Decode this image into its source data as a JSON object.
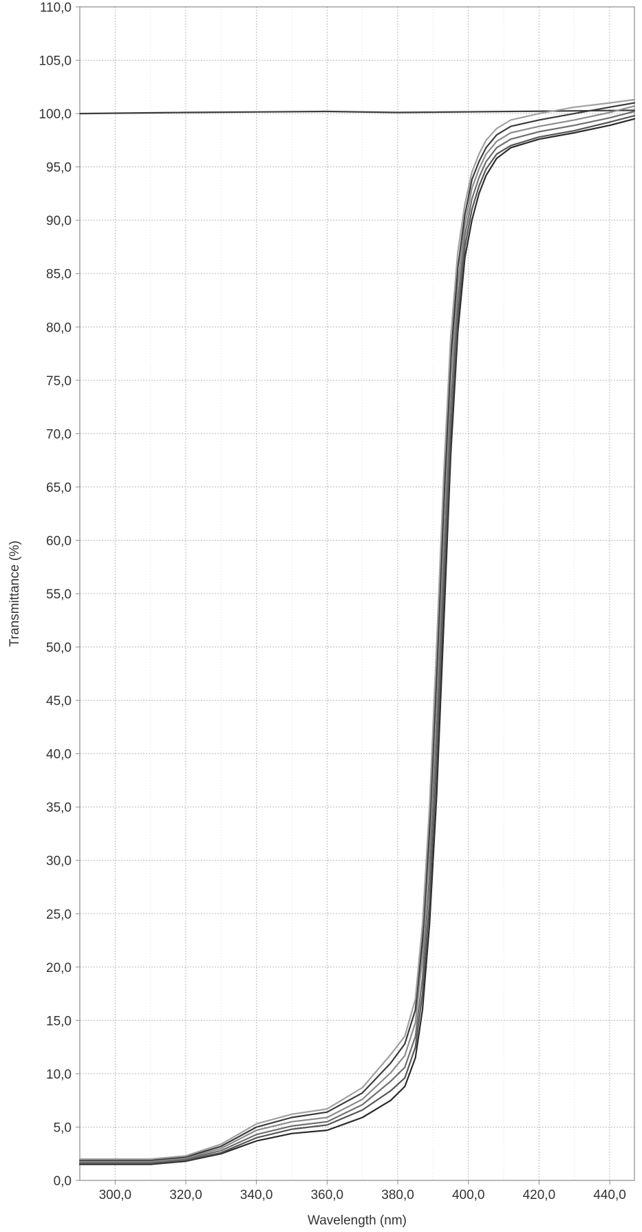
{
  "chart_data": {
    "type": "line",
    "xlabel": "Wavelength (nm)",
    "ylabel": "Transmittance (%)",
    "xlim": [
      290,
      447
    ],
    "ylim": [
      0,
      110
    ],
    "x_ticks": [
      300,
      320,
      340,
      360,
      380,
      400,
      420,
      440
    ],
    "x_tick_labels": [
      "300,0",
      "320,0",
      "340,0",
      "360,0",
      "380,0",
      "400,0",
      "420,0",
      "440,0"
    ],
    "y_ticks": [
      0,
      5,
      10,
      15,
      20,
      25,
      30,
      35,
      40,
      45,
      50,
      55,
      60,
      65,
      70,
      75,
      80,
      85,
      90,
      95,
      100,
      105,
      110
    ],
    "y_tick_labels": [
      "0,0",
      "5,0",
      "10,0",
      "15,0",
      "20,0",
      "25,0",
      "30,0",
      "35,0",
      "40,0",
      "45,0",
      "50,0",
      "55,0",
      "60,0",
      "65,0",
      "70,0",
      "75,0",
      "80,0",
      "85,0",
      "90,0",
      "95,0",
      "100,0",
      "105,0",
      "110,0"
    ],
    "grid": true,
    "legend": "none",
    "series": [
      {
        "color": "#3c3c3c",
        "x": [
          290,
          320,
          360,
          380,
          447
        ],
        "y": [
          100.0,
          100.1,
          100.2,
          100.1,
          100.3
        ]
      },
      {
        "color": "#2a2a2a",
        "x": [
          290,
          300,
          310,
          320,
          330,
          340,
          350,
          360,
          370,
          378,
          382,
          385,
          387,
          389,
          391,
          393,
          395,
          397,
          399,
          401,
          403,
          405,
          408,
          412,
          420,
          430,
          440,
          447
        ],
        "y": [
          1.5,
          1.5,
          1.5,
          1.8,
          2.5,
          3.7,
          4.4,
          4.7,
          5.9,
          7.5,
          8.8,
          11.5,
          16.0,
          24.0,
          36.0,
          52.0,
          68.0,
          79.5,
          86.5,
          90.0,
          92.5,
          94.2,
          95.8,
          96.8,
          97.6,
          98.2,
          98.9,
          99.5
        ]
      },
      {
        "color": "#555555",
        "x": [
          290,
          300,
          310,
          320,
          330,
          340,
          350,
          360,
          370,
          378,
          382,
          385,
          387,
          389,
          391,
          393,
          395,
          397,
          399,
          401,
          403,
          405,
          408,
          412,
          420,
          430,
          440,
          447
        ],
        "y": [
          1.6,
          1.6,
          1.6,
          1.9,
          2.6,
          4.0,
          4.8,
          5.2,
          6.6,
          8.4,
          9.6,
          12.5,
          17.5,
          26.0,
          39.0,
          55.0,
          70.0,
          81.0,
          87.5,
          91.0,
          93.2,
          94.8,
          96.2,
          97.0,
          97.8,
          98.4,
          99.2,
          99.8
        ]
      },
      {
        "color": "#6e6e6e",
        "x": [
          290,
          300,
          310,
          320,
          330,
          340,
          350,
          360,
          370,
          378,
          382,
          385,
          387,
          389,
          391,
          393,
          395,
          397,
          399,
          401,
          403,
          405,
          408,
          412,
          420,
          430,
          440,
          447
        ],
        "y": [
          1.7,
          1.7,
          1.7,
          2.0,
          2.8,
          4.3,
          5.1,
          5.5,
          7.1,
          9.3,
          10.6,
          13.5,
          19.0,
          28.5,
          42.0,
          58.0,
          72.5,
          82.5,
          88.5,
          92.0,
          94.0,
          95.5,
          96.8,
          97.6,
          98.3,
          98.9,
          99.6,
          100.2
        ]
      },
      {
        "color": "#8c8c8c",
        "x": [
          290,
          300,
          310,
          320,
          330,
          340,
          350,
          360,
          370,
          378,
          382,
          385,
          387,
          389,
          391,
          393,
          395,
          397,
          399,
          401,
          403,
          405,
          408,
          412,
          420,
          430,
          440,
          447
        ],
        "y": [
          1.8,
          1.8,
          1.8,
          2.1,
          3.0,
          4.7,
          5.5,
          5.9,
          7.6,
          10.1,
          11.7,
          14.8,
          21.0,
          31.0,
          45.0,
          61.0,
          75.0,
          84.0,
          89.5,
          93.0,
          94.8,
          96.2,
          97.4,
          98.2,
          98.8,
          99.4,
          100.1,
          100.7
        ]
      },
      {
        "color": "#3a3a3a",
        "x": [
          290,
          300,
          310,
          320,
          330,
          340,
          350,
          360,
          370,
          378,
          382,
          385,
          387,
          389,
          391,
          393,
          395,
          397,
          399,
          401,
          403,
          405,
          408,
          412,
          420,
          430,
          440,
          447
        ],
        "y": [
          1.9,
          1.9,
          1.9,
          2.2,
          3.2,
          5.0,
          5.9,
          6.4,
          8.2,
          11.0,
          12.8,
          16.0,
          22.5,
          33.0,
          47.5,
          63.5,
          77.0,
          85.5,
          90.5,
          93.8,
          95.5,
          96.8,
          98.0,
          98.8,
          99.4,
          100.0,
          100.6,
          101.0
        ]
      },
      {
        "color": "#a0a0a0",
        "x": [
          290,
          300,
          310,
          320,
          330,
          340,
          350,
          360,
          370,
          378,
          382,
          385,
          387,
          389,
          391,
          393,
          395,
          397,
          399,
          401,
          403,
          405,
          408,
          412,
          420,
          430,
          440,
          447
        ],
        "y": [
          2.0,
          2.0,
          2.0,
          2.3,
          3.4,
          5.3,
          6.2,
          6.7,
          8.7,
          11.8,
          13.5,
          17.0,
          24.0,
          35.0,
          50.0,
          66.0,
          79.0,
          87.0,
          91.5,
          94.5,
          96.2,
          97.5,
          98.6,
          99.4,
          100.0,
          100.6,
          101.0,
          101.3
        ]
      }
    ]
  }
}
